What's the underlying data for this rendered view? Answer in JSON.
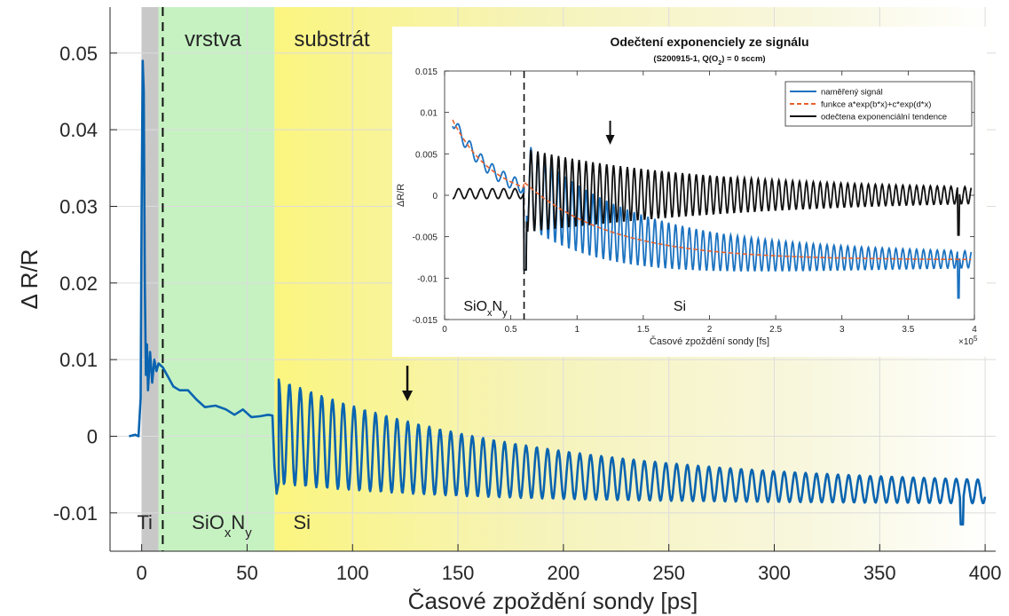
{
  "chart_data": [
    {
      "type": "line",
      "title": "",
      "xlabel": "Časové zpoždění sondy [ps]",
      "ylabel": "Δ R/R",
      "xlim": [
        -15,
        405
      ],
      "ylim": [
        -0.015,
        0.056
      ],
      "xticks": [
        "0",
        "50",
        "100",
        "150",
        "200",
        "250",
        "300",
        "350",
        "400"
      ],
      "yticks": [
        "-0.01",
        "0",
        "0.01",
        "0.02",
        "0.03",
        "0.04",
        "0.05"
      ],
      "grid": true,
      "regions": [
        {
          "name": "Ti",
          "label_html": "Ti",
          "x0": 0,
          "x1": 8,
          "color": "#c8c8c8"
        },
        {
          "name": "SiOxNy",
          "label_html": "SiO<sub>x</sub>N<sub>y</sub>",
          "x0": 8,
          "x1": 63,
          "color": "#c6f2c2"
        },
        {
          "name": "Si",
          "label_html": "Si",
          "x0": 63,
          "x1": 405,
          "color": "#fbf59a"
        }
      ],
      "top_labels": [
        "vrstva",
        "substrát"
      ],
      "interface_x": 10,
      "arrow_x": 126,
      "series": [
        {
          "name": "",
          "color": "#0a64b0",
          "points": [
            [
              -6,
              0
            ],
            [
              -3,
              0.0002
            ],
            [
              -1.5,
              0
            ],
            [
              -0.5,
              0.005
            ],
            [
              0,
              0.03
            ],
            [
              0.5,
              0.049
            ],
            [
              1,
              0.045
            ],
            [
              1.5,
              0.02
            ],
            [
              2,
              0.008
            ],
            [
              2.5,
              0.012
            ],
            [
              3,
              0.006
            ],
            [
              4,
              0.011
            ],
            [
              5,
              0.007
            ],
            [
              6,
              0.01
            ],
            [
              7,
              0.0085
            ],
            [
              8,
              0.0095
            ],
            [
              10,
              0.009
            ],
            [
              12,
              0.008
            ],
            [
              15,
              0.0065
            ],
            [
              18,
              0.006
            ],
            [
              22,
              0.006
            ],
            [
              26,
              0.0048
            ],
            [
              30,
              0.0038
            ],
            [
              35,
              0.004
            ],
            [
              40,
              0.0035
            ],
            [
              44,
              0.0028
            ],
            [
              48,
              0.0035
            ],
            [
              52,
              0.0025
            ],
            [
              56,
              0.0026
            ],
            [
              60,
              0.0028
            ],
            [
              62,
              0.0027
            ],
            [
              63,
              -0.004
            ],
            [
              64,
              -0.0075
            ],
            [
              65,
              -0.006
            ]
          ],
          "oscillation": {
            "x_start": 65,
            "x_end": 400,
            "period": 5.1,
            "amp_start": 0.0068,
            "amp_end": 0.0008,
            "base_start": 0.0006,
            "base_end": -0.0072,
            "base_curve": 1.3
          },
          "spikes": [
            [
              389,
              -0.0115
            ]
          ]
        }
      ]
    },
    {
      "type": "line",
      "title": "Odečtení exponenciely ze signálu",
      "subtitle_html": "(S200915-1, Q(O<tspan baseline-shift=\"sub\" font-size=\"7\">2</tspan>) = 0 sccm)",
      "subtitle": "(S200915-1, Q(O2) = 0 sccm)",
      "xlabel": "Časové zpoždění sondy [fs]",
      "ylabel": "ΔR/R",
      "xlim": [
        0,
        4
      ],
      "x_multiplier": "×10",
      "x_exponent": "5",
      "ylim": [
        -0.015,
        0.015
      ],
      "xticks": [
        "0",
        "0.5",
        "1",
        "1.5",
        "2",
        "2.5",
        "3",
        "3.5",
        "4"
      ],
      "yticks": [
        "-0.015",
        "-0.01",
        "-0.005",
        "0",
        "0.005",
        "0.01",
        "0.015"
      ],
      "grid": false,
      "legend_position": "top-right",
      "interface_x": 0.6,
      "arrow_x": 1.25,
      "region_labels": [
        {
          "label_html": "SiO<tspan baseline-shift=\"sub\" font-size=\"11\">x</tspan>N<tspan baseline-shift=\"sub\" font-size=\"11\">y</tspan>",
          "label": "SiOxNy"
        },
        {
          "label_html": "Si",
          "label": "Si"
        }
      ],
      "series": [
        {
          "name": "naměřený signál",
          "color": "#1b72c0",
          "style": "solid"
        },
        {
          "name": "funkce a*exp(b*x)+c*exp(d*x)",
          "color": "#e8602c",
          "style": "dashed"
        },
        {
          "name": "odečtena exponenciální tendence",
          "color": "#111111",
          "style": "solid"
        }
      ]
    }
  ]
}
